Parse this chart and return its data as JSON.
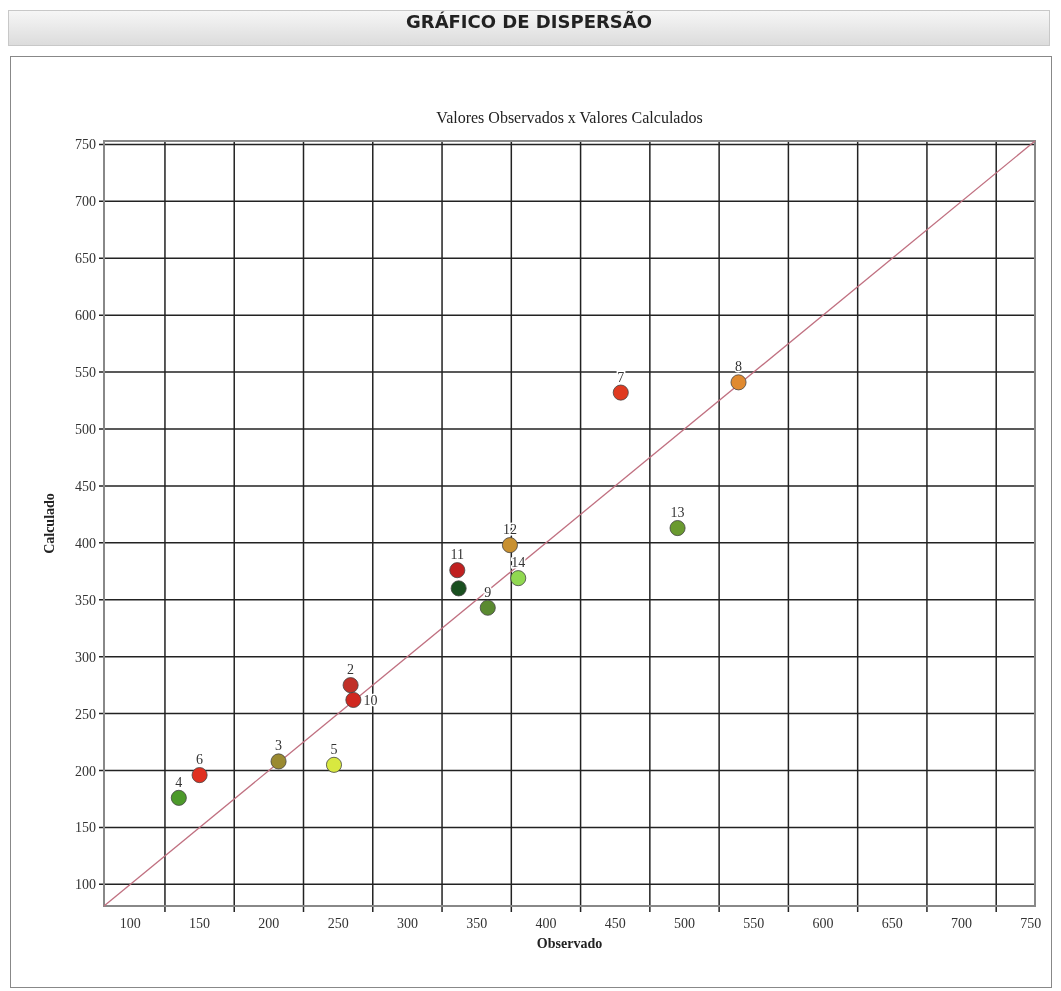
{
  "chart_data": {
    "type": "scatter",
    "title": "GRÁFICO DE DISPERSÃO",
    "subtitle": "Valores Observados x Valores Calculados",
    "xlabel": "Observado",
    "ylabel": "Calculado",
    "xlim": [
      81,
      753
    ],
    "ylim": [
      81,
      753
    ],
    "xticks": [
      100,
      {
        "value": 125,
        "label": null
      },
      150,
      {
        "value": 175,
        "label": null
      },
      200,
      {
        "value": 225,
        "label": null
      },
      250,
      {
        "value": 275,
        "label": null
      },
      300,
      {
        "value": 325,
        "label": null
      },
      350,
      {
        "value": 375,
        "label": null
      },
      400,
      {
        "value": 425,
        "label": null
      },
      450,
      {
        "value": 475,
        "label": null
      },
      500,
      {
        "value": 525,
        "label": null
      },
      550,
      {
        "value": 575,
        "label": null
      },
      600,
      {
        "value": 625,
        "label": null
      },
      650,
      {
        "value": 675,
        "label": null
      },
      700,
      {
        "value": 725,
        "label": null
      },
      750
    ],
    "yticks": [
      100,
      150,
      200,
      250,
      300,
      350,
      400,
      450,
      500,
      550,
      600,
      650,
      700,
      750
    ],
    "grid": true,
    "marker": "circle",
    "series": [
      {
        "x": [
          337,
          259,
          207,
          135,
          247,
          150,
          454,
          539,
          358,
          261,
          336,
          374,
          495,
          380
        ],
        "values": [
          360,
          275,
          208,
          176,
          205,
          196,
          532,
          541,
          343,
          262,
          376,
          398,
          413,
          369
        ],
        "colors": [
          "#1a5020",
          "#c03028",
          "#9a8a30",
          "#4c9a2a",
          "#d8e840",
          "#e03020",
          "#e03a20",
          "#e08a30",
          "#5a8a30",
          "#d02820",
          "#c02020",
          "#c89030",
          "#6a9a30",
          "#90d850"
        ]
      },
      {
        "type": "line",
        "x": [
          81,
          753
        ],
        "values": [
          81,
          753
        ],
        "color": "#c07080",
        "line_style": "solid",
        "marker": "none"
      }
    ],
    "annotations": [
      {
        "text": "2",
        "x": 259,
        "y": 275
      },
      {
        "text": "3",
        "x": 207,
        "y": 208
      },
      {
        "text": "4",
        "x": 135,
        "y": 176
      },
      {
        "text": "5",
        "x": 247,
        "y": 205
      },
      {
        "text": "6",
        "x": 150,
        "y": 196
      },
      {
        "text": "7",
        "x": 454,
        "y": 532
      },
      {
        "text": "8",
        "x": 539,
        "y": 541
      },
      {
        "text": "9",
        "x": 358,
        "y": 343
      },
      {
        "text": "10",
        "x": 261,
        "y": 262
      },
      {
        "text": "11",
        "x": 336,
        "y": 376
      },
      {
        "text": "12",
        "x": 374,
        "y": 398
      },
      {
        "text": "13",
        "x": 495,
        "y": 413
      },
      {
        "text": "14",
        "x": 380,
        "y": 369
      }
    ]
  }
}
